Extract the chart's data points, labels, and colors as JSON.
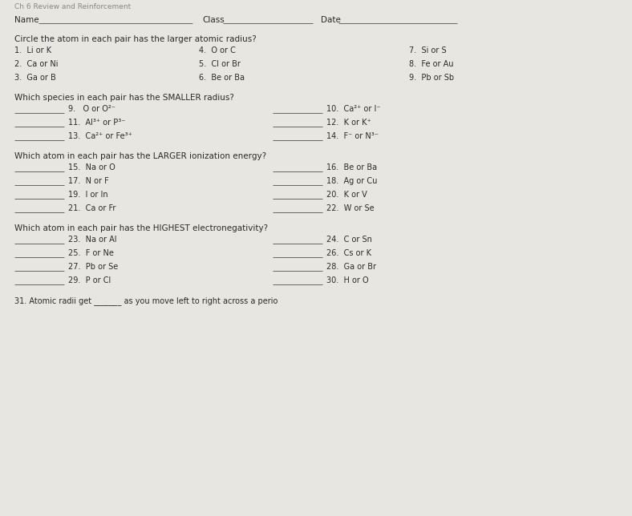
{
  "bg_color": "#e8e6e0",
  "header": "Ch 6 Review and Reinforcement",
  "name_label": "Name",
  "class_label": "Class",
  "date_label": "Date",
  "section1_title": "Circle the atom in each pair has the larger atomic radius?",
  "section1_col1": [
    "1.  Li or K",
    "2.  Ca or Ni",
    "3.  Ga or B"
  ],
  "section1_col2": [
    "4.  O or C",
    "5.  Cl or Br",
    "6.  Be or Ba"
  ],
  "section1_col3": [
    "7.  Si or S",
    "8.  Fe or Au",
    "9.  Pb or Sb"
  ],
  "section2_title": "Which species in each pair has the SMALLER radius?",
  "section2_col1_items": [
    "9.   O or O²⁻",
    "11.  Al³⁺ or P³⁻",
    "13.  Ca²⁺ or Fe³⁺"
  ],
  "section2_col2_items": [
    "10.  Ca²⁺ or I⁻",
    "12.  K or K⁺",
    "14.  F⁻ or N³⁻"
  ],
  "section3_title": "Which atom in each pair has the LARGER ionization energy?",
  "section3_col1_items": [
    "15.  Na or O",
    "17.  N or F",
    "19.  I or In",
    "21.  Ca or Fr"
  ],
  "section3_col2_items": [
    "16.  Be or Ba",
    "18.  Ag or Cu",
    "20.  K or V",
    "22.  W or Se"
  ],
  "section4_title": "Which atom in each pair has the HIGHEST electronegativity?",
  "section4_col1_items": [
    "23.  Na or Al",
    "25.  F or Ne",
    "27.  Pb or Se",
    "29.  P or Cl"
  ],
  "section4_col2_items": [
    "24.  C or Sn",
    "26.  Cs or K",
    "28.  Ga or Br",
    "30.  H or O"
  ],
  "footer": "31. Atomic radii get _______ as you move left to right across a perio",
  "text_color": "#2a2a2a",
  "line_color": "#666666",
  "header_color": "#888888"
}
